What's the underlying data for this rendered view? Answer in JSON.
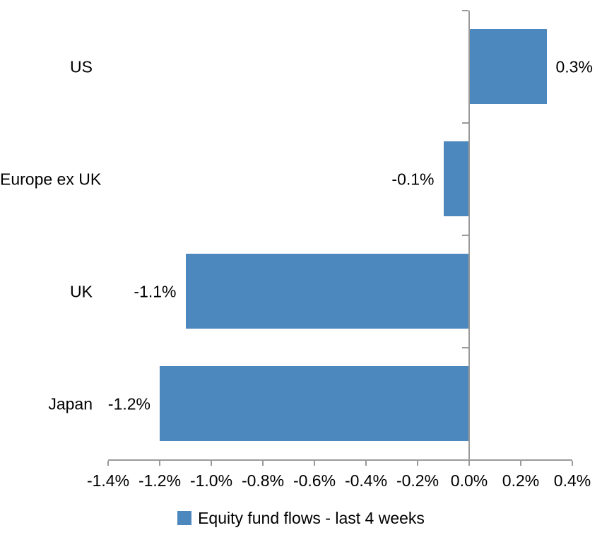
{
  "chart_data": {
    "type": "bar",
    "orientation": "horizontal",
    "title": "",
    "categories": [
      "US",
      "Europe ex UK",
      "UK",
      "Japan"
    ],
    "values": [
      0.3,
      -0.1,
      -1.1,
      -1.2
    ],
    "data_labels": [
      "0.3%",
      "-0.1%",
      "-1.1%",
      "-1.2%"
    ],
    "series": [
      {
        "name": "Equity fund flows - last 4 weeks",
        "values": [
          0.3,
          -0.1,
          -1.1,
          -1.2
        ]
      }
    ],
    "x_axis": {
      "min": -1.4,
      "max": 0.4,
      "step": 0.2,
      "tick_labels": [
        "-1.4%",
        "-1.2%",
        "-1.0%",
        "-0.8%",
        "-0.6%",
        "-0.4%",
        "-0.2%",
        "0.0%",
        "0.2%",
        "0.4%"
      ]
    },
    "grid": false,
    "legend": {
      "position": "bottom",
      "label": "Equity fund flows - last 4 weeks"
    },
    "colors": {
      "bar": "#4C87BD",
      "axis": "#9A9A9A",
      "text": "#000000",
      "background": "#FFFFFF"
    }
  }
}
